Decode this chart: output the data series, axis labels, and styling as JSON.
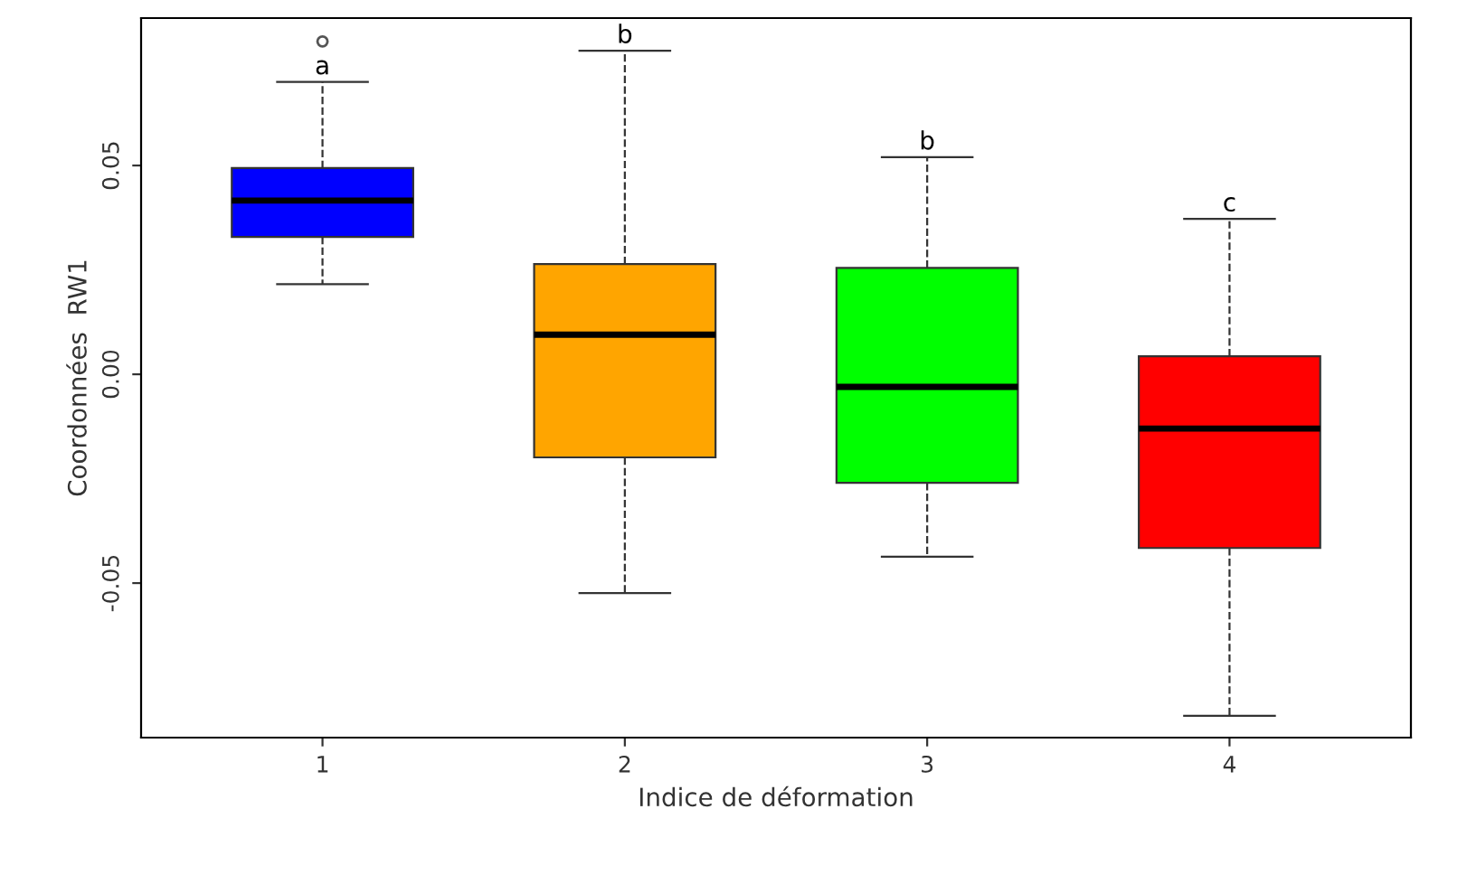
{
  "chart_data": {
    "type": "box",
    "xlabel": "Indice de déformation",
    "ylabel": "Coordonnées  RW1",
    "categories": [
      "1",
      "2",
      "3",
      "4"
    ],
    "colors": [
      "#0000ff",
      "#ffa500",
      "#00ff00",
      "#ff0000"
    ],
    "boxes": [
      {
        "low": 0.0216,
        "q1": 0.0329,
        "median": 0.0416,
        "q3": 0.0494,
        "high": 0.07,
        "outliers": [
          0.0797
        ]
      },
      {
        "low": -0.0524,
        "q1": -0.0199,
        "median": 0.0095,
        "q3": 0.0264,
        "high": 0.0775
      },
      {
        "low": -0.0437,
        "q1": -0.026,
        "median": -0.003,
        "q3": 0.0255,
        "high": 0.052
      },
      {
        "low": -0.0818,
        "q1": -0.0416,
        "median": -0.013,
        "q3": 0.0043,
        "high": 0.0372
      }
    ],
    "ylim": [
      -0.087,
      0.0853
    ],
    "yticks": [
      {
        "value": -0.05,
        "label": "-0.05"
      },
      {
        "value": 0.0,
        "label": "0.00"
      },
      {
        "value": 0.05,
        "label": "0.05"
      }
    ],
    "annotations": [
      {
        "text": "a",
        "x": "1",
        "y": 0.07
      },
      {
        "text": "b",
        "x": "2",
        "y": 0.0775
      },
      {
        "text": "b",
        "x": "3",
        "y": 0.052
      },
      {
        "text": "c",
        "x": "4",
        "y": 0.0372
      }
    ],
    "grid": false,
    "legend": false
  }
}
